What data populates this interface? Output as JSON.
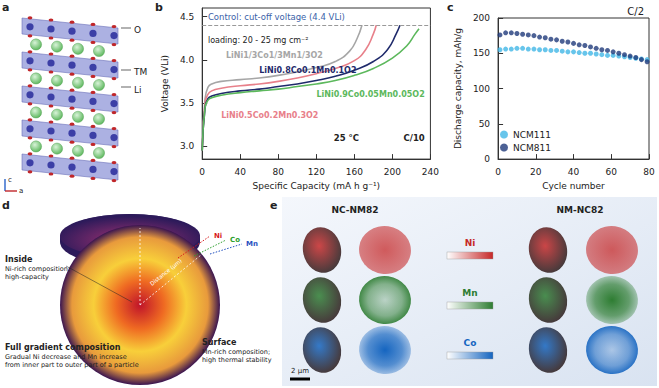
{
  "chart_data": [
    {
      "panel": "b",
      "type": "line",
      "xlabel": "Specific Capacity (mA h g⁻¹)",
      "ylabel": "Voltage (VLi)",
      "xlim": [
        0,
        240
      ],
      "xticks": [
        0,
        40,
        80,
        120,
        160,
        200,
        240
      ],
      "ylim": [
        2.85,
        4.6
      ],
      "yticks": [
        {
          "value": 3,
          "label": "3.0"
        },
        3.5,
        {
          "value": 4,
          "label": "4.0"
        },
        4.5
      ],
      "reference_line": {
        "value": 4.4,
        "label": "Control: cut-off voltage (4.4 VLi)"
      },
      "annotations": [
        "loading: 20 - 25 mg cm⁻²",
        "25 °C",
        "C/10"
      ],
      "series": [
        {
          "name": "LiNi1/3Co1/3Mn1/3O2",
          "color": "#a6a6a6",
          "x": [
            0,
            3,
            6,
            10,
            20,
            40,
            60,
            80,
            100,
            120,
            140,
            155,
            163,
            168
          ],
          "values": [
            2.95,
            3.55,
            3.68,
            3.72,
            3.75,
            3.77,
            3.79,
            3.82,
            3.86,
            3.91,
            3.98,
            4.1,
            4.25,
            4.4
          ]
        },
        {
          "name": "LiNi0.5Co0.2Mn0.3O2",
          "color": "#e8808a",
          "x": [
            0,
            3,
            6,
            10,
            20,
            40,
            60,
            80,
            100,
            120,
            140,
            160,
            172,
            180,
            183
          ],
          "values": [
            2.95,
            3.5,
            3.6,
            3.64,
            3.67,
            3.7,
            3.72,
            3.75,
            3.79,
            3.84,
            3.9,
            3.99,
            4.12,
            4.3,
            4.4
          ]
        },
        {
          "name": "LiNi0.8Co0.1Mn0.1O2",
          "color": "#1f2a6b",
          "x": [
            0,
            3,
            6,
            10,
            20,
            40,
            60,
            80,
            100,
            120,
            140,
            160,
            180,
            195,
            204,
            208
          ],
          "values": [
            2.95,
            3.45,
            3.55,
            3.58,
            3.61,
            3.64,
            3.66,
            3.69,
            3.72,
            3.76,
            3.81,
            3.88,
            3.98,
            4.12,
            4.3,
            4.4
          ]
        },
        {
          "name": "LiNi0.9Co0.05Mn0.05O2",
          "color": "#5cb85c",
          "x": [
            0,
            3,
            6,
            10,
            20,
            40,
            60,
            80,
            100,
            120,
            140,
            160,
            180,
            200,
            215,
            224,
            228
          ],
          "values": [
            2.95,
            3.45,
            3.53,
            3.56,
            3.59,
            3.62,
            3.64,
            3.66,
            3.69,
            3.72,
            3.76,
            3.82,
            3.9,
            4.02,
            4.16,
            4.3,
            4.36
          ]
        }
      ]
    },
    {
      "panel": "c",
      "type": "scatter",
      "xlabel": "Cycle number",
      "ylabel": "Discharge capacity, mAh/g",
      "xlim": [
        0,
        80
      ],
      "xticks": [
        0,
        20,
        40,
        60,
        80
      ],
      "ylim": [
        0,
        200
      ],
      "yticks": [
        0,
        50,
        100,
        150,
        200
      ],
      "annotations": [
        "C/2"
      ],
      "legend": "lower left",
      "marker": "circle",
      "series": [
        {
          "name": "NCM111",
          "color": "#41b6e6",
          "x": [
            1,
            4,
            7,
            10,
            13,
            16,
            19,
            22,
            25,
            28,
            31,
            34,
            37,
            40,
            43,
            46,
            49,
            52,
            55,
            58,
            61,
            64,
            67,
            70,
            73,
            76,
            79
          ],
          "values": [
            155,
            156,
            156,
            157,
            157,
            156,
            156,
            155,
            155,
            154,
            154,
            153,
            152,
            152,
            151,
            150,
            150,
            149,
            148,
            147,
            147,
            146,
            145,
            144,
            143,
            142,
            141
          ]
        },
        {
          "name": "NCM811",
          "color": "#1f3a7a",
          "x": [
            1,
            4,
            7,
            10,
            13,
            16,
            19,
            22,
            25,
            28,
            31,
            34,
            37,
            40,
            43,
            46,
            49,
            52,
            55,
            58,
            61,
            64,
            67,
            70,
            73,
            76,
            79
          ],
          "values": [
            176,
            179,
            179,
            178,
            177,
            176,
            175,
            173,
            172,
            170,
            169,
            167,
            166,
            164,
            162,
            161,
            159,
            157,
            155,
            154,
            152,
            150,
            148,
            146,
            144,
            141,
            138
          ]
        }
      ]
    }
  ],
  "crystal_structure": {
    "panel": "a",
    "labels": [
      "O",
      "TM",
      "Li"
    ],
    "axes": [
      "c",
      "a"
    ]
  },
  "gradient_particle": {
    "panel": "d",
    "inside": {
      "title": "Inside",
      "lines": [
        "Ni-rich composition;",
        "high-capacity"
      ]
    },
    "middle": {
      "title": "Full gradient composition",
      "lines": [
        "Gradual Ni decrease and Mn increase",
        "from inner part to outer part of a particle"
      ]
    },
    "surface": {
      "title": "Surface",
      "lines": [
        "Mn-rich composition;",
        "high thermal stability"
      ]
    },
    "elements": [
      {
        "name": "Ni",
        "color": "#d7191c"
      },
      {
        "name": "Co",
        "color": "#2ca02c"
      },
      {
        "name": "Mn",
        "color": "#1f4fbf"
      }
    ],
    "axis_label": "Distance (μm)"
  },
  "eds_maps": {
    "panel": "e",
    "samples": [
      "NC-NM82",
      "NM-NC82"
    ],
    "elements": [
      {
        "name": "Ni",
        "color": "#c62828"
      },
      {
        "name": "Mn",
        "color": "#2e7d32"
      },
      {
        "name": "Co",
        "color": "#1565c0"
      }
    ],
    "scale_bar": "2 μm"
  }
}
